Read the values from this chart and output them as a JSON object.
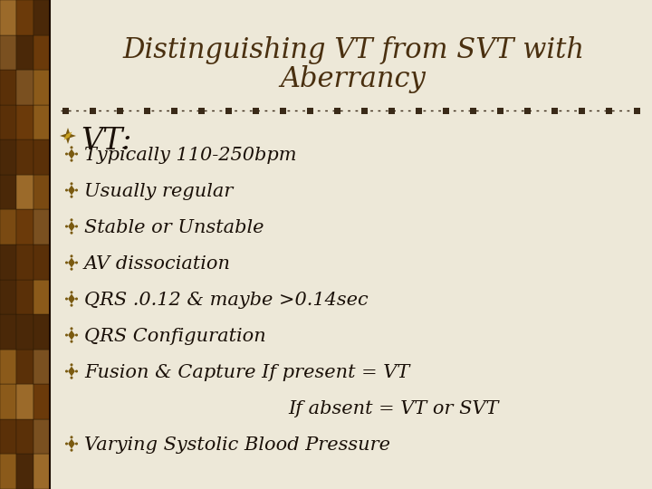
{
  "title_line1": "Distinguishing VT from SVT with",
  "title_line2": "Aberrancy",
  "title_color": "#4a3010",
  "title_fontsize": 22,
  "bg_color": "#ede8d8",
  "sidebar_colors": [
    "#8b5a1a",
    "#4a2a08",
    "#7a4a12"
  ],
  "divider_color": "#3a2a18",
  "vt_header": "VT:",
  "vt_header_color": "#1a1008",
  "vt_header_fontsize": 24,
  "bullet_color": "#7a5a10",
  "text_color": "#1a1008",
  "bullet_fontsize": 15,
  "items": [
    "Typically 110-250bpm",
    "Usually regular",
    "Stable or Unstable",
    "AV dissociation",
    "QRS .0.12 & maybe >0.14sec",
    "QRS Configuration",
    "Fusion & Capture If present = VT",
    "INDENT:If absent = VT or SVT",
    "Varying Systolic Blood Pressure"
  ],
  "figsize": [
    7.2,
    5.4
  ],
  "dpi": 100
}
